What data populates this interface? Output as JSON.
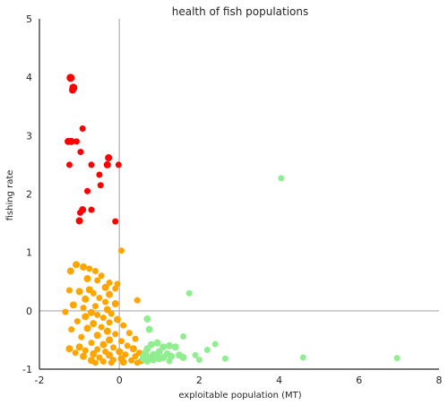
{
  "chart_data": {
    "type": "scatter",
    "title": "health of fish populations",
    "xlabel": "exploitable population (MT)",
    "ylabel": "fishing rate",
    "xlim": [
      -2,
      8
    ],
    "ylim": [
      -1,
      5
    ],
    "xticks": [
      -2,
      0,
      2,
      4,
      6,
      8
    ],
    "yticks": [
      -1,
      0,
      1,
      2,
      3,
      4,
      5
    ],
    "grid": false,
    "reference_lines": {
      "x": 0,
      "y": 0,
      "color": "#c0c0c0"
    },
    "colors": {
      "red": "#ff0000",
      "orange": "#ffa500",
      "green": "#90ee90"
    },
    "series": [
      {
        "color": "red",
        "points": [
          [
            -1.22,
            3.99,
            7
          ],
          [
            -1.15,
            3.82,
            7
          ],
          [
            -1.17,
            3.78,
            6
          ],
          [
            -0.92,
            3.12,
            5
          ],
          [
            -1.28,
            2.9,
            6
          ],
          [
            -1.2,
            2.9,
            6
          ],
          [
            -1.07,
            2.9,
            5
          ],
          [
            -0.97,
            2.72,
            5
          ],
          [
            -0.27,
            2.62,
            6
          ],
          [
            -0.3,
            2.5,
            6
          ],
          [
            -0.02,
            2.5,
            5
          ],
          [
            -0.7,
            2.5,
            5
          ],
          [
            -1.25,
            2.5,
            5
          ],
          [
            -0.5,
            2.33,
            5
          ],
          [
            -0.47,
            2.15,
            5
          ],
          [
            -0.8,
            2.05,
            5
          ],
          [
            -0.92,
            1.73,
            6
          ],
          [
            -0.98,
            1.68,
            5
          ],
          [
            -0.7,
            1.73,
            5
          ],
          [
            -1.0,
            1.54,
            6
          ],
          [
            -0.1,
            1.53,
            5
          ]
        ]
      },
      {
        "color": "orange",
        "points": [
          [
            0.05,
            1.03,
            5
          ],
          [
            -1.08,
            0.79,
            6
          ],
          [
            -0.9,
            0.75,
            6
          ],
          [
            -0.75,
            0.72,
            5
          ],
          [
            -1.22,
            0.68,
            6
          ],
          [
            -0.6,
            0.68,
            5
          ],
          [
            -0.45,
            0.6,
            5
          ],
          [
            -0.8,
            0.55,
            6
          ],
          [
            -0.55,
            0.52,
            5
          ],
          [
            -0.25,
            0.48,
            5
          ],
          [
            -0.05,
            0.46,
            5
          ],
          [
            -0.35,
            0.4,
            6
          ],
          [
            -0.1,
            0.38,
            5
          ],
          [
            -0.75,
            0.36,
            6
          ],
          [
            -1.25,
            0.35,
            5
          ],
          [
            -1.0,
            0.33,
            6
          ],
          [
            -0.65,
            0.3,
            5
          ],
          [
            -0.25,
            0.28,
            6
          ],
          [
            -0.5,
            0.22,
            5
          ],
          [
            -0.85,
            0.2,
            6
          ],
          [
            0.45,
            0.18,
            5
          ],
          [
            -0.35,
            0.15,
            5
          ],
          [
            -0.1,
            0.12,
            6
          ],
          [
            -1.15,
            0.1,
            6
          ],
          [
            -0.6,
            0.08,
            5
          ],
          [
            -0.9,
            0.05,
            5
          ],
          [
            -0.3,
            0.02,
            6
          ],
          [
            -1.35,
            -0.02,
            5
          ],
          [
            -0.7,
            -0.03,
            6
          ],
          [
            -0.2,
            -0.05,
            5
          ],
          [
            -0.55,
            -0.07,
            5
          ],
          [
            -0.85,
            -0.1,
            6
          ],
          [
            -0.4,
            -0.12,
            5
          ],
          [
            -0.05,
            -0.15,
            6
          ],
          [
            -1.05,
            -0.18,
            5
          ],
          [
            -0.25,
            -0.2,
            5
          ],
          [
            -0.65,
            -0.22,
            6
          ],
          [
            0.1,
            -0.25,
            5
          ],
          [
            -0.45,
            -0.28,
            5
          ],
          [
            -0.8,
            -0.3,
            6
          ],
          [
            -1.2,
            -0.32,
            5
          ],
          [
            -0.3,
            -0.35,
            6
          ],
          [
            0.25,
            -0.38,
            5
          ],
          [
            -0.1,
            -0.4,
            5
          ],
          [
            -0.55,
            -0.42,
            6
          ],
          [
            -0.95,
            -0.45,
            5
          ],
          [
            0.4,
            -0.48,
            5
          ],
          [
            -0.25,
            -0.5,
            6
          ],
          [
            0.05,
            -0.52,
            5
          ],
          [
            -0.7,
            -0.55,
            5
          ],
          [
            -0.4,
            -0.58,
            6
          ],
          [
            0.2,
            -0.6,
            5
          ],
          [
            -1.0,
            -0.62,
            6
          ],
          [
            -0.15,
            -0.63,
            5
          ],
          [
            0.35,
            -0.65,
            6
          ],
          [
            -0.55,
            -0.66,
            5
          ],
          [
            -1.25,
            -0.65,
            6
          ],
          [
            -0.85,
            -0.68,
            5
          ],
          [
            0.0,
            -0.7,
            6
          ],
          [
            -0.35,
            -0.7,
            5
          ],
          [
            0.5,
            -0.72,
            5
          ],
          [
            -1.1,
            -0.72,
            5
          ],
          [
            -0.65,
            -0.74,
            6
          ],
          [
            0.15,
            -0.75,
            5
          ],
          [
            -0.25,
            -0.76,
            6
          ],
          [
            0.4,
            -0.78,
            5
          ],
          [
            -0.9,
            -0.78,
            6
          ],
          [
            -0.5,
            -0.8,
            5
          ],
          [
            0.05,
            -0.82,
            6
          ],
          [
            -0.15,
            -0.84,
            5
          ],
          [
            0.3,
            -0.85,
            5
          ],
          [
            -0.7,
            -0.85,
            6
          ],
          [
            0.55,
            -0.86,
            5
          ],
          [
            -0.4,
            -0.87,
            5
          ],
          [
            0.1,
            -0.88,
            6
          ],
          [
            -0.2,
            -0.89,
            5
          ],
          [
            -0.6,
            -0.89,
            5
          ],
          [
            0.45,
            -0.89,
            5
          ]
        ]
      },
      {
        "color": "green",
        "points": [
          [
            4.05,
            2.27,
            5
          ],
          [
            1.75,
            0.3,
            5
          ],
          [
            0.7,
            -0.14,
            6
          ],
          [
            1.6,
            -0.44,
            5
          ],
          [
            0.75,
            -0.32,
            6
          ],
          [
            2.4,
            -0.57,
            5
          ],
          [
            0.95,
            -0.55,
            6
          ],
          [
            0.8,
            -0.58,
            6
          ],
          [
            1.25,
            -0.6,
            6
          ],
          [
            1.1,
            -0.62,
            6
          ],
          [
            1.4,
            -0.62,
            6
          ],
          [
            2.2,
            -0.67,
            5
          ],
          [
            0.7,
            -0.65,
            6
          ],
          [
            1.0,
            -0.7,
            6
          ],
          [
            0.65,
            -0.72,
            6
          ],
          [
            1.2,
            -0.74,
            6
          ],
          [
            0.85,
            -0.75,
            6
          ],
          [
            1.5,
            -0.76,
            6
          ],
          [
            1.9,
            -0.76,
            5
          ],
          [
            0.6,
            -0.78,
            6
          ],
          [
            0.95,
            -0.78,
            6
          ],
          [
            1.3,
            -0.78,
            6
          ],
          [
            0.75,
            -0.8,
            6
          ],
          [
            1.1,
            -0.8,
            6
          ],
          [
            1.6,
            -0.8,
            6
          ],
          [
            4.6,
            -0.8,
            5
          ],
          [
            6.95,
            -0.81,
            5
          ],
          [
            0.6,
            -0.82,
            6
          ],
          [
            1.0,
            -0.82,
            6
          ],
          [
            2.65,
            -0.82,
            5
          ],
          [
            2.0,
            -0.84,
            5
          ],
          [
            0.85,
            -0.84,
            6
          ],
          [
            1.25,
            -0.86,
            5
          ],
          [
            0.7,
            -0.86,
            6
          ]
        ]
      }
    ]
  }
}
